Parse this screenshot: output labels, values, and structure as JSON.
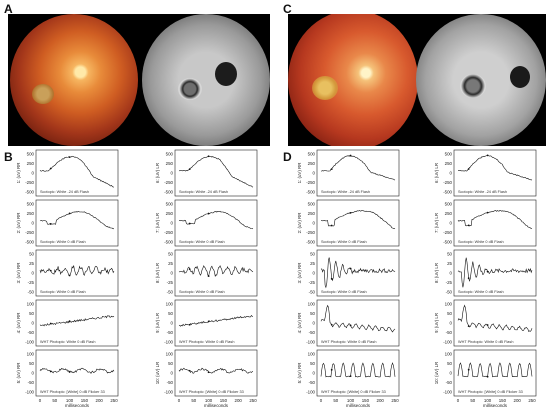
{
  "panels": {
    "a": "A",
    "b": "B",
    "c": "C",
    "d": "D"
  },
  "erg": {
    "left": {
      "rows": [
        {
          "label": "1: (uV) RR",
          "caption": "Scotopic: White -24 dB Flash",
          "ticks": [
            "500",
            "250",
            "0",
            "-250",
            "-500"
          ],
          "series": "B1"
        },
        {
          "label": "2: (uV) RR",
          "caption": "Scotopic: White 0 dB Flash",
          "ticks": [
            "500",
            "250",
            "0",
            "-250",
            "-500"
          ],
          "series": "B2"
        },
        {
          "label": "3: (uV) RR",
          "caption": "Scotopic: White 0 dB Flash",
          "ticks": [
            "50",
            "25",
            "0",
            "-25",
            "-50"
          ],
          "series": "B3"
        },
        {
          "label": "4: (uV) RR",
          "caption": "WHT Photopic: White 0 dB Flash",
          "ticks": [
            "100",
            "50",
            "0",
            "-50",
            "-100"
          ],
          "series": "B4"
        },
        {
          "label": "5: (uV) RR",
          "caption": "WHT Photopic: [White] 0 dB Flicker 33",
          "ticks": [
            "100",
            "50",
            "0",
            "-50",
            "-100"
          ],
          "series": "B5"
        }
      ],
      "xticks": [
        "0",
        "50",
        "100",
        "150",
        "200",
        "250"
      ],
      "xlabel": "milliseconds"
    },
    "right": {
      "rows": [
        {
          "label": "6: (uV) LR",
          "caption": "Scotopic: White -24 dB Flash",
          "ticks": [
            "500",
            "250",
            "0",
            "-250",
            "-500"
          ],
          "series": "B1"
        },
        {
          "label": "7: (uV) LR",
          "caption": "Scotopic: White 0 dB Flash",
          "ticks": [
            "500",
            "250",
            "0",
            "-250",
            "-500"
          ],
          "series": "B2"
        },
        {
          "label": "8: (uV) LR",
          "caption": "Scotopic: White 0 dB Flash",
          "ticks": [
            "50",
            "25",
            "0",
            "-25",
            "-50"
          ],
          "series": "B3"
        },
        {
          "label": "9: (uV) LR",
          "caption": "WHT Photopic: White 0 dB Flash",
          "ticks": [
            "100",
            "50",
            "0",
            "-50",
            "-100"
          ],
          "series": "B4"
        },
        {
          "label": "10: (uV) LR",
          "caption": "WHT Photopic: [White] 0 dB Flicker 33",
          "ticks": [
            "100",
            "50",
            "0",
            "-50",
            "-100"
          ],
          "series": "B5"
        }
      ],
      "xticks": [
        "0",
        "50",
        "100",
        "150",
        "200",
        "250"
      ],
      "xlabel": "milliseconds"
    },
    "d_left": {
      "rows": [
        {
          "label": "1: (uV) RR",
          "caption": "Scotopic: White -24 dB Flash",
          "ticks": [
            "500",
            "250",
            "0",
            "-250",
            "-500"
          ],
          "series": "D1"
        },
        {
          "label": "2: (uV) RR",
          "caption": "Scotopic: White 0 dB Flash",
          "ticks": [
            "500",
            "250",
            "0",
            "-250",
            "-500"
          ],
          "series": "D2"
        },
        {
          "label": "3: (uV) RR",
          "caption": "Scotopic: White 0 dB Flash",
          "ticks": [
            "50",
            "25",
            "0",
            "-25",
            "-50"
          ],
          "series": "D3"
        },
        {
          "label": "4: (uV) RR",
          "caption": "WHT Photopic: White 0 dB Flash",
          "ticks": [
            "100",
            "50",
            "0",
            "-50",
            "-100"
          ],
          "series": "D4"
        },
        {
          "label": "5: (uV) RR",
          "caption": "WHT Photopic: [White] 0 dB Flicker 33",
          "ticks": [
            "100",
            "50",
            "0",
            "-50",
            "-100"
          ],
          "series": "D5"
        }
      ],
      "xticks": [
        "0",
        "50",
        "100",
        "150",
        "200",
        "250"
      ],
      "xlabel": "milliseconds"
    },
    "d_right": {
      "rows": [
        {
          "label": "6: (uV) LR",
          "caption": "Scotopic: White -24 dB Flash",
          "ticks": [
            "500",
            "250",
            "0",
            "-250",
            "-500"
          ],
          "series": "D1"
        },
        {
          "label": "7: (uV) LR",
          "caption": "Scotopic: White 0 dB Flash",
          "ticks": [
            "500",
            "250",
            "0",
            "-250",
            "-500"
          ],
          "series": "D2"
        },
        {
          "label": "8: (uV) LR",
          "caption": "Scotopic: White 0 dB Flash",
          "ticks": [
            "50",
            "25",
            "0",
            "-25",
            "-50"
          ],
          "series": "D3"
        },
        {
          "label": "9: (uV) LR",
          "caption": "WHT Photopic: White 0 dB Flash",
          "ticks": [
            "100",
            "50",
            "0",
            "-50",
            "-100"
          ],
          "series": "D4"
        },
        {
          "label": "10: (uV) LR",
          "caption": "WHT Photopic: [White] 0 dB Flicker 33",
          "ticks": [
            "100",
            "50",
            "0",
            "-50",
            "-100"
          ],
          "series": "D5"
        }
      ],
      "xticks": [
        "0",
        "50",
        "100",
        "150",
        "200",
        "250"
      ],
      "xlabel": "milliseconds"
    }
  }
}
